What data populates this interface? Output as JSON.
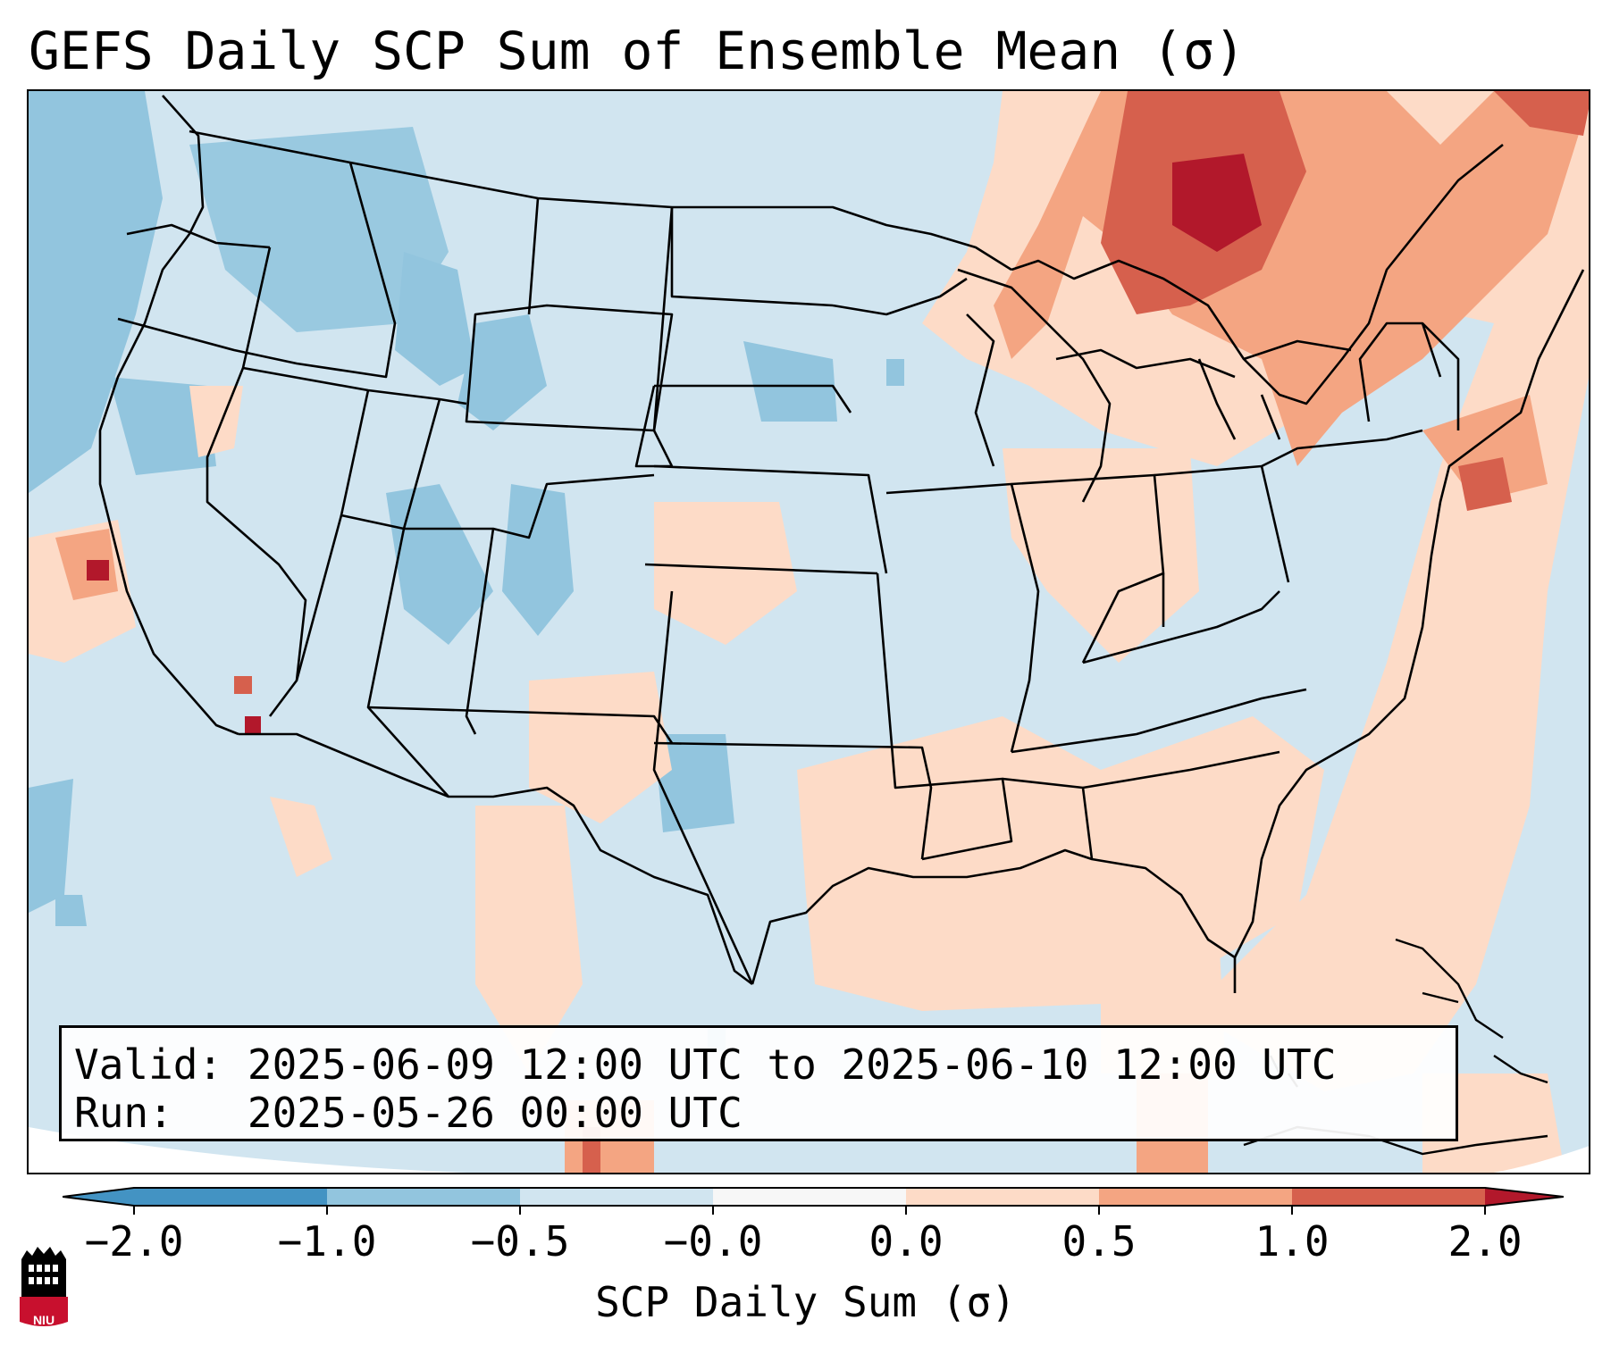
{
  "title": "GEFS Daily SCP Sum of Ensemble Mean (σ)",
  "info": {
    "valid_label": "Valid:",
    "valid_value": "2025-06-09 12:00 UTC to 2025-06-10 12:00 UTC",
    "run_label": "Run:",
    "run_value": "2025-05-26 00:00 UTC"
  },
  "colorbar": {
    "label": "SCP Daily Sum (σ)",
    "ticks": [
      "−2.0",
      "−1.0",
      "−0.5",
      "−0.0",
      "0.0",
      "0.5",
      "1.0",
      "2.0"
    ],
    "colors": [
      "#4393c3",
      "#92c5de",
      "#d1e5f0",
      "#f7f7f7",
      "#fddbc7",
      "#f4a582",
      "#d6604d",
      "#b2182b"
    ]
  },
  "logo": {
    "text": "NIU",
    "color": "#c8102e",
    "icon": "university-tower-icon"
  }
}
